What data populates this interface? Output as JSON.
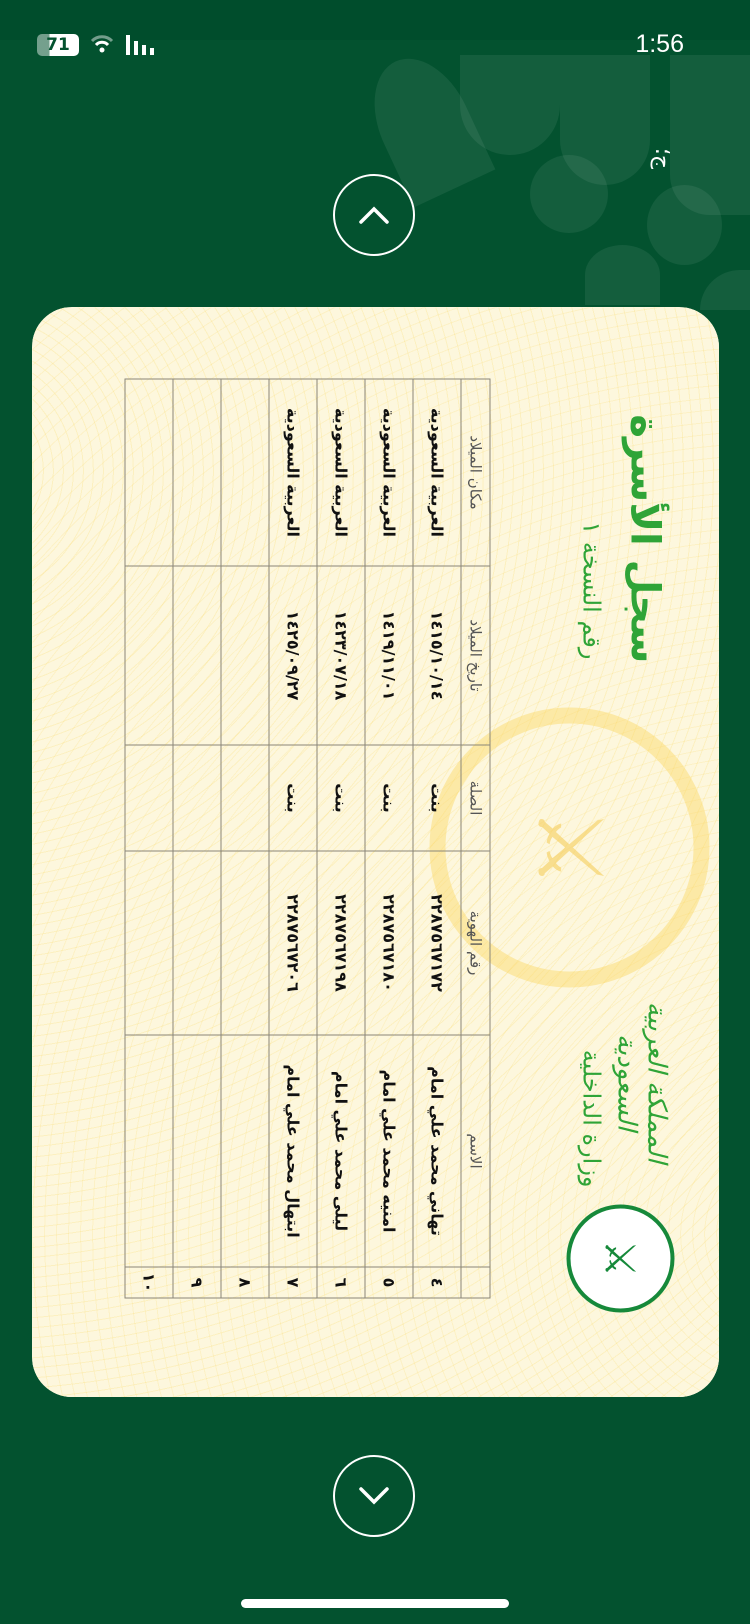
{
  "status_bar": {
    "battery": "71",
    "time": "1:56",
    "icons": [
      "battery-icon",
      "wifi-icon",
      "signal-icon"
    ]
  },
  "corner_glyph": "ج؛",
  "navigation": {
    "up_icon": "chevron-up-icon",
    "down_icon": "chevron-down-icon"
  },
  "document": {
    "title": "سجل الأسرة",
    "copy_label": "رقم النسخة ١",
    "ministry": "وزارة الداخلية",
    "kingdom": "المملكة العربية السعودية",
    "columns": [
      "",
      "الاسم",
      "رقم الهوية",
      "الصلة",
      "تاريخ الميلاد",
      "مكان الميلاد"
    ],
    "rows": [
      {
        "no": "٤",
        "name": "تهاني محمد علي امام",
        "id": "٢٢٨٧٥٦٧١٧٢",
        "relation": "بنت",
        "dob": "١٤١٥/١٠/١٤",
        "pob": "العربية السعودية"
      },
      {
        "no": "٥",
        "name": "امنيه محمد علي امام",
        "id": "٢٢٨٧٥٦٧١٨٠",
        "relation": "بنت",
        "dob": "١٤١٩/١١/٠١",
        "pob": "العربية السعودية"
      },
      {
        "no": "٦",
        "name": "ليلى محمد علي امام",
        "id": "٢٢٨٧٥٦٧١٩٨",
        "relation": "بنت",
        "dob": "١٤٢٣/٠٧/١٨",
        "pob": "العربية السعودية"
      },
      {
        "no": "٧",
        "name": "ابتهال محمد علي امام",
        "id": "٢٢٨٧٥٦٧٢٠٦",
        "relation": "بنت",
        "dob": "١٤٢٥/٠٩/٢٧",
        "pob": "العربية السعودية"
      },
      {
        "no": "٨",
        "name": "",
        "id": "",
        "relation": "",
        "dob": "",
        "pob": ""
      },
      {
        "no": "٩",
        "name": "",
        "id": "",
        "relation": "",
        "dob": "",
        "pob": ""
      },
      {
        "no": "١٠",
        "name": "",
        "id": "",
        "relation": "",
        "dob": "",
        "pob": ""
      }
    ]
  },
  "colors": {
    "background": "#03522f",
    "card": "#fdf7dd",
    "title_green": "#2fa437"
  }
}
